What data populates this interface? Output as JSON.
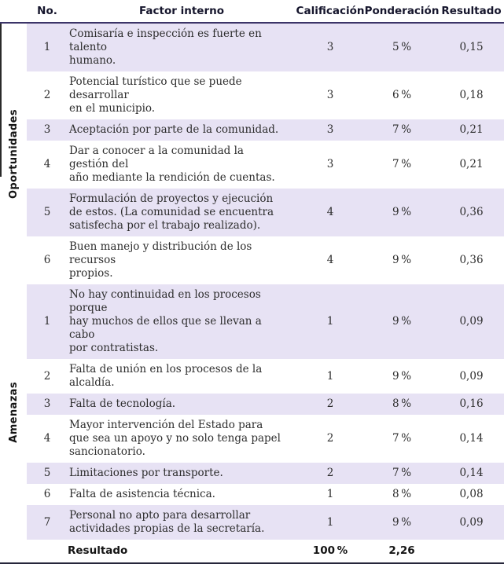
{
  "header": {
    "no": "No.",
    "factor": "Factor interno",
    "calificacion": "Calificación",
    "ponderacion": "Ponderación",
    "resultado": "Resultado"
  },
  "sections": [
    {
      "label": "Oportunidades",
      "rows": [
        {
          "no": "1",
          "factor": "Comisaría e inspección es fuerte en talento\nhumano.",
          "calificacion": "3",
          "ponderacion": "5 %",
          "resultado": "0,15"
        },
        {
          "no": "2",
          "factor": "Potencial turístico que se puede desarrollar\nen el municipio.",
          "calificacion": "3",
          "ponderacion": "6 %",
          "resultado": "0,18"
        },
        {
          "no": "3",
          "factor": "Aceptación por parte de la comunidad.",
          "calificacion": "3",
          "ponderacion": "7 %",
          "resultado": "0,21"
        },
        {
          "no": "4",
          "factor": "Dar a conocer a la comunidad la gestión del\naño mediante la rendición de cuentas.",
          "calificacion": "3",
          "ponderacion": "7 %",
          "resultado": "0,21"
        },
        {
          "no": "5",
          "factor": "Formulación de proyectos y ejecución\nde estos. (La comunidad se encuentra\nsatisfecha por el trabajo realizado).",
          "calificacion": "4",
          "ponderacion": "9 %",
          "resultado": "0,36"
        },
        {
          "no": "6",
          "factor": "Buen manejo y distribución de los recursos\npropios.",
          "calificacion": "4",
          "ponderacion": "9 %",
          "resultado": "0,36"
        }
      ]
    },
    {
      "label": "Amenazas",
      "rows": [
        {
          "no": "1",
          "factor": "No hay continuidad en los procesos porque\nhay muchos de ellos que se llevan a cabo\npor contratistas.",
          "calificacion": "1",
          "ponderacion": "9 %",
          "resultado": "0,09"
        },
        {
          "no": "2",
          "factor": "Falta de unión en los procesos de la\nalcaldía.",
          "calificacion": "1",
          "ponderacion": "9 %",
          "resultado": "0,09"
        },
        {
          "no": "3",
          "factor": "Falta de tecnología.",
          "calificacion": "2",
          "ponderacion": "8 %",
          "resultado": "0,16"
        },
        {
          "no": "4",
          "factor": "Mayor intervención del Estado para\nque sea un apoyo y no solo tenga papel\nsancionatorio.",
          "calificacion": "2",
          "ponderacion": "7 %",
          "resultado": "0,14"
        },
        {
          "no": "5",
          "factor": "Limitaciones por transporte.",
          "calificacion": "2",
          "ponderacion": "7 %",
          "resultado": "0,14"
        },
        {
          "no": "6",
          "factor": "Falta de asistencia técnica.",
          "calificacion": "1",
          "ponderacion": "8 %",
          "resultado": "0,08"
        },
        {
          "no": "7",
          "factor": "Personal no apto para desarrollar\nactividades propias de la secretaría.",
          "calificacion": "1",
          "ponderacion": "9 %",
          "resultado": "0,09"
        }
      ]
    }
  ],
  "footer": {
    "label": "Resultado",
    "calificacion": "100 %",
    "ponderacion": "2,26",
    "resultado": ""
  },
  "colors": {
    "row_alt": "#e7e2f4",
    "header_rule": "#3b3468",
    "header_rule_light": "#b9b1dc",
    "bottom_rule": "#26263a",
    "body_text": "#2d2d2d",
    "header_text": "#15152c"
  }
}
